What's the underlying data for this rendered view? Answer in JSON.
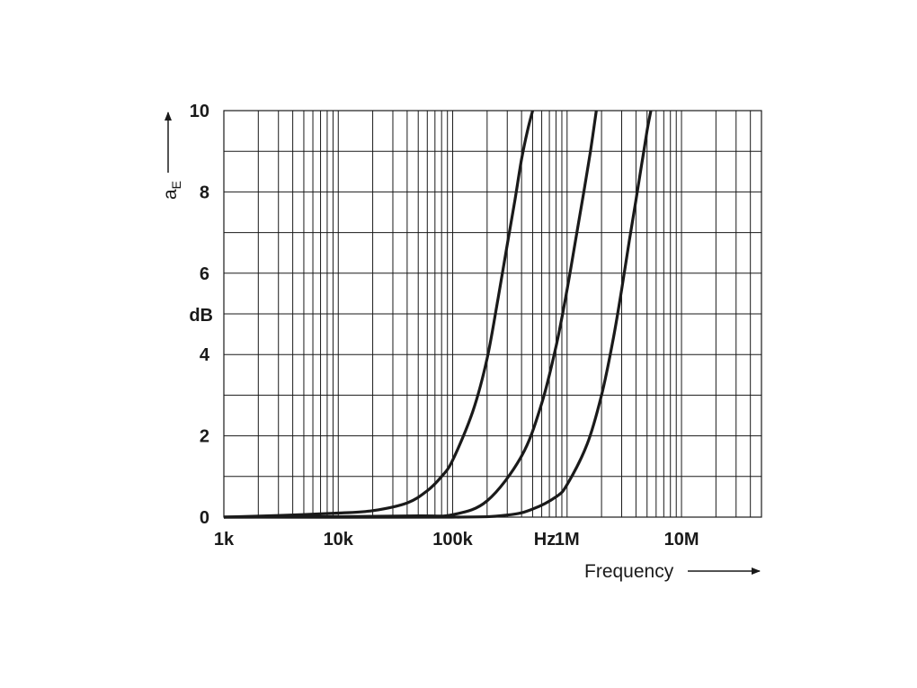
{
  "chart_data": {
    "type": "line",
    "xscale": "log",
    "xlim": [
      1000,
      50000000
    ],
    "ylim": [
      0,
      10
    ],
    "grid": true,
    "x_ticks": [
      {
        "value": 1000,
        "label": "1k"
      },
      {
        "value": 10000,
        "label": "10k"
      },
      {
        "value": 100000,
        "label": "100k"
      },
      {
        "value": 1000000,
        "label": "1M"
      },
      {
        "value": 10000000,
        "label": "10M"
      }
    ],
    "x_unit": "Hz",
    "xlabel": "Frequency",
    "y_ticks": [
      {
        "value": 0,
        "label": "0"
      },
      {
        "value": 2,
        "label": "2"
      },
      {
        "value": 4,
        "label": "4"
      },
      {
        "value": 6,
        "label": "6"
      },
      {
        "value": 8,
        "label": "8"
      },
      {
        "value": 10,
        "label": "10"
      }
    ],
    "y_unit": "dB",
    "ylabel": "a",
    "ylabel_sub": "E",
    "series": [
      {
        "x": [
          1000,
          3000,
          10000,
          20000,
          40000,
          60000,
          80000,
          100000,
          150000,
          200000,
          250000,
          300000,
          350000,
          400000,
          450000,
          500000
        ],
        "values": [
          0.0,
          0.04,
          0.1,
          0.16,
          0.35,
          0.65,
          1.0,
          1.4,
          2.6,
          3.9,
          5.4,
          6.7,
          7.8,
          8.8,
          9.5,
          10.0
        ]
      },
      {
        "x": [
          1000,
          10000,
          50000,
          100000,
          200000,
          400000,
          600000,
          800000,
          1000000,
          1200000,
          1400000,
          1600000,
          1800000
        ],
        "values": [
          0.0,
          0.01,
          0.03,
          0.06,
          0.4,
          1.5,
          2.8,
          4.2,
          5.6,
          6.9,
          8.0,
          9.0,
          10.0
        ]
      },
      {
        "x": [
          1000,
          100000,
          300000,
          500000,
          800000,
          1000000,
          1500000,
          2000000,
          2500000,
          3000000,
          3500000,
          4000000,
          4500000,
          5000000,
          5400000
        ],
        "values": [
          0.0,
          0.0,
          0.05,
          0.2,
          0.5,
          0.8,
          1.8,
          3.0,
          4.3,
          5.6,
          6.8,
          7.8,
          8.7,
          9.5,
          10.0
        ]
      }
    ]
  }
}
